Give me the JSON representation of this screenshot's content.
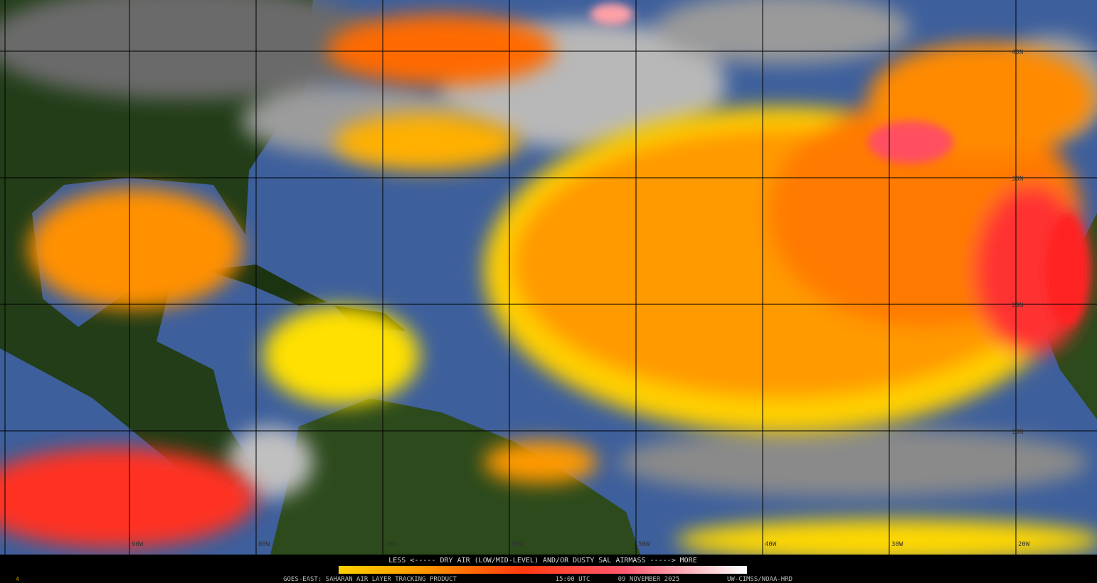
{
  "map": {
    "legend_caption": "LESS <----- DRY AIR (LOW/MID-LEVEL) AND/OR DUSTY SAL AIRMASS -----> MORE",
    "product": "GOES-EAST: SAHARAN AIR LAYER TRACKING PRODUCT",
    "time": "15:00 UTC",
    "date": "09 NOVEMBER 2025",
    "credit": "UW-CIMSS/NOAA-HRD",
    "corner_mark": "4",
    "lon_labels": [
      "90W",
      "80W",
      "70W",
      "60W",
      "50W",
      "40W",
      "30W",
      "20W"
    ],
    "lat_labels": [
      "40N",
      "30N",
      "20N",
      "10N"
    ]
  }
}
